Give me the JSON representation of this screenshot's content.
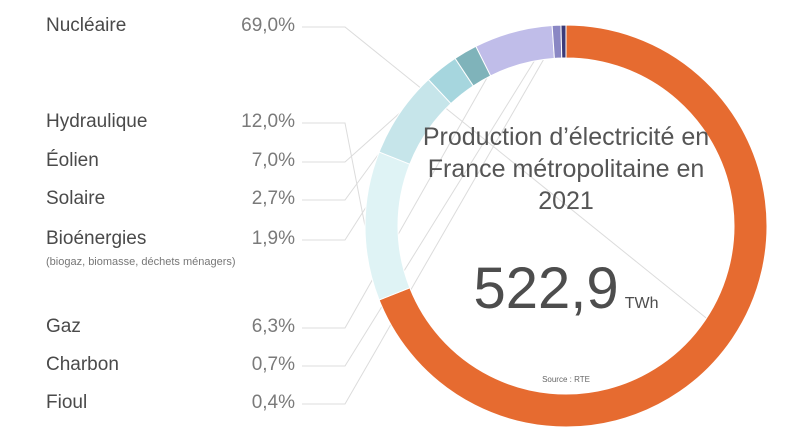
{
  "chart_data": {
    "type": "pie",
    "title": "Production d’électricité en France métropolitaine en 2021",
    "total_value": "522,9",
    "total_unit": "TWh",
    "source": "Source : RTE",
    "legend_placement": "left",
    "slices": [
      {
        "label": "Nucléaire",
        "value": 69.0,
        "value_text": "69,0%",
        "color": "#e66b30"
      },
      {
        "label": "Hydraulique",
        "value": 12.0,
        "value_text": "12,0%",
        "color": "#dff3f5"
      },
      {
        "label": "Éolien",
        "value": 7.0,
        "value_text": "7,0%",
        "color": "#c6e5ea"
      },
      {
        "label": "Solaire",
        "value": 2.7,
        "value_text": "2,7%",
        "color": "#a6d6de"
      },
      {
        "label": "Bioénergies",
        "sublabel": "(biogaz, biomasse, déchets ménagers)",
        "value": 1.9,
        "value_text": "1,9%",
        "color": "#7fb3ba"
      },
      {
        "label": "Gaz",
        "value": 6.3,
        "value_text": "6,3%",
        "color": "#c0bde9"
      },
      {
        "label": "Charbon",
        "value": 0.7,
        "value_text": "0,7%",
        "color": "#8a87c4"
      },
      {
        "label": "Fioul",
        "value": 0.4,
        "value_text": "0,4%",
        "color": "#3c3b78"
      }
    ]
  }
}
